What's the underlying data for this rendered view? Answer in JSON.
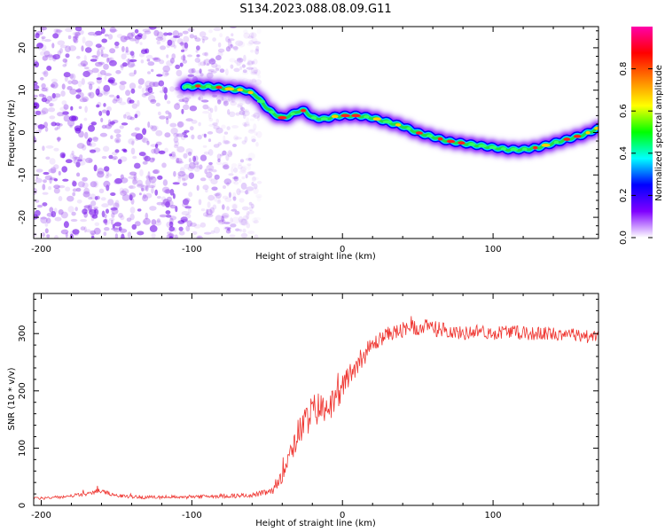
{
  "title": "S134.2023.088.08.09.G11",
  "chart_data": [
    {
      "type": "heatmap",
      "xlabel": "Height of straight line (km)",
      "ylabel": "Frequency (Hz)",
      "xlim": [
        -205,
        170
      ],
      "ylim": [
        -25,
        25
      ],
      "xticks": [
        -200,
        -100,
        0,
        100
      ],
      "yticks": [
        20,
        10,
        0,
        -10,
        -20
      ],
      "grid": false,
      "noise_region_x": [
        -205,
        -55
      ],
      "ridge": {
        "x": [
          -105,
          -95,
          -85,
          -75,
          -65,
          -58,
          -52,
          -46,
          -40,
          -35,
          -30,
          -25,
          -20,
          -12,
          -5,
          0,
          10,
          20,
          30,
          40,
          50,
          60,
          70,
          80,
          90,
          100,
          110,
          120,
          130,
          140,
          150,
          160,
          170
        ],
        "y": [
          10.8,
          11,
          10.8,
          10.3,
          10,
          9,
          6.5,
          4.5,
          3.5,
          4,
          5,
          5.2,
          3.5,
          3.2,
          3.8,
          4,
          4,
          3.5,
          2.5,
          1.5,
          0,
          -1,
          -2,
          -2.5,
          -3,
          -3.5,
          -4,
          -4,
          -3.5,
          -2.5,
          -1.5,
          -0.5,
          1
        ]
      },
      "colorbar": {
        "label": "Normalized spectral amplitude",
        "range": [
          0,
          1
        ],
        "ticks": [
          0.0,
          0.2,
          0.4,
          0.6,
          0.8
        ],
        "colors": [
          "#ffffff",
          "#7f00ff",
          "#0000ff",
          "#00ffff",
          "#00ff00",
          "#ffff00",
          "#ff8000",
          "#ff0000",
          "#ff00aa"
        ]
      }
    },
    {
      "type": "line",
      "xlabel": "Height of straight line (km)",
      "ylabel": "SNR (10 * v/v)",
      "xlim": [
        -205,
        170
      ],
      "ylim": [
        0,
        370
      ],
      "xticks": [
        -200,
        -100,
        0,
        100
      ],
      "yticks": [
        0,
        100,
        200,
        300
      ],
      "grid": false,
      "series": [
        {
          "color": "#ef3530",
          "x": [
            -205,
            -185,
            -170,
            -162,
            -150,
            -130,
            -110,
            -90,
            -70,
            -60,
            -45,
            -40,
            -35,
            -30,
            -25,
            -20,
            -15,
            -10,
            -5,
            0,
            5,
            10,
            15,
            20,
            25,
            30,
            40,
            50,
            60,
            70,
            80,
            90,
            100,
            110,
            120,
            130,
            140,
            150,
            160,
            170
          ],
          "values": [
            12,
            15,
            20,
            26,
            17,
            14,
            15,
            16,
            17,
            18,
            25,
            60,
            95,
            120,
            145,
            165,
            170,
            175,
            180,
            205,
            230,
            250,
            265,
            280,
            290,
            300,
            305,
            310,
            310,
            305,
            300,
            305,
            300,
            305,
            300,
            300,
            300,
            300,
            295,
            295
          ],
          "noise": [
            3,
            3,
            3,
            4,
            3,
            3,
            3,
            3,
            4,
            4,
            6,
            20,
            25,
            30,
            30,
            30,
            30,
            25,
            25,
            25,
            20,
            20,
            18,
            15,
            14,
            12,
            15,
            15,
            15,
            12,
            12,
            12,
            12,
            12,
            12,
            12,
            12,
            12,
            12,
            12
          ]
        }
      ]
    }
  ]
}
